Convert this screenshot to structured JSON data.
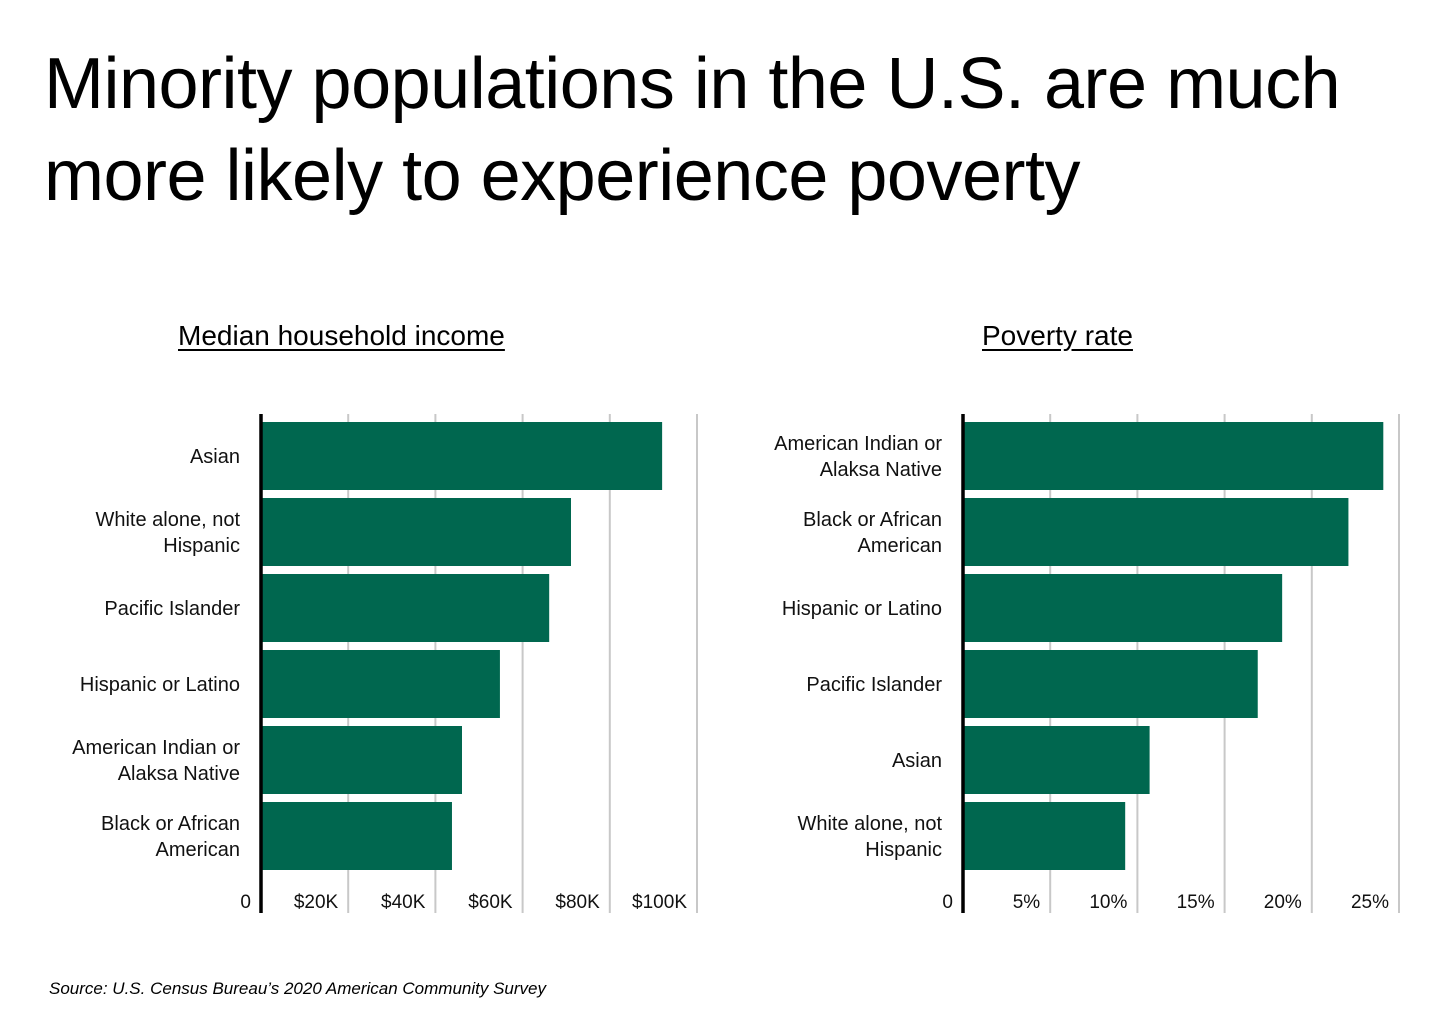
{
  "title": "Minority populations in the U.S. are much more likely to experience poverty",
  "source": "Source:  U.S. Census Bureau’s 2020 American Community Survey",
  "colors": {
    "bar": "#00674F",
    "axis": "#000000",
    "grid": "#C8C8C8"
  },
  "chart_data": [
    {
      "type": "bar",
      "orientation": "horizontal",
      "title": "Median household income",
      "categories": [
        [
          "Asian"
        ],
        [
          "White alone, not",
          "Hispanic"
        ],
        [
          "Pacific Islander"
        ],
        [
          "Hispanic or Latino"
        ],
        [
          "American Indian or",
          "Alaksa Native"
        ],
        [
          "Black or African",
          "American"
        ]
      ],
      "values": [
        92000,
        71100,
        66100,
        54800,
        46100,
        43800
      ],
      "xlim": [
        0,
        100000
      ],
      "ticks": [
        0,
        20000,
        40000,
        60000,
        80000,
        100000
      ],
      "tick_labels": [
        "0",
        "$20K",
        "$40K",
        "$60K",
        "$80K",
        "$100K"
      ],
      "grid": true
    },
    {
      "type": "bar",
      "orientation": "horizontal",
      "title": "Poverty rate",
      "categories": [
        [
          "American Indian or",
          "Alaksa Native"
        ],
        [
          "Black or African",
          "American"
        ],
        [
          "Hispanic or Latino"
        ],
        [
          "Pacific Islander"
        ],
        [
          "Asian"
        ],
        [
          "White alone, not",
          "Hispanic"
        ]
      ],
      "values": [
        24.1,
        22.1,
        18.3,
        16.9,
        10.7,
        9.3
      ],
      "xlim": [
        0,
        25
      ],
      "ticks": [
        0,
        5,
        10,
        15,
        20,
        25
      ],
      "tick_labels": [
        "0",
        "5%",
        "10%",
        "15%",
        "20%",
        "25%"
      ],
      "grid": true
    }
  ]
}
